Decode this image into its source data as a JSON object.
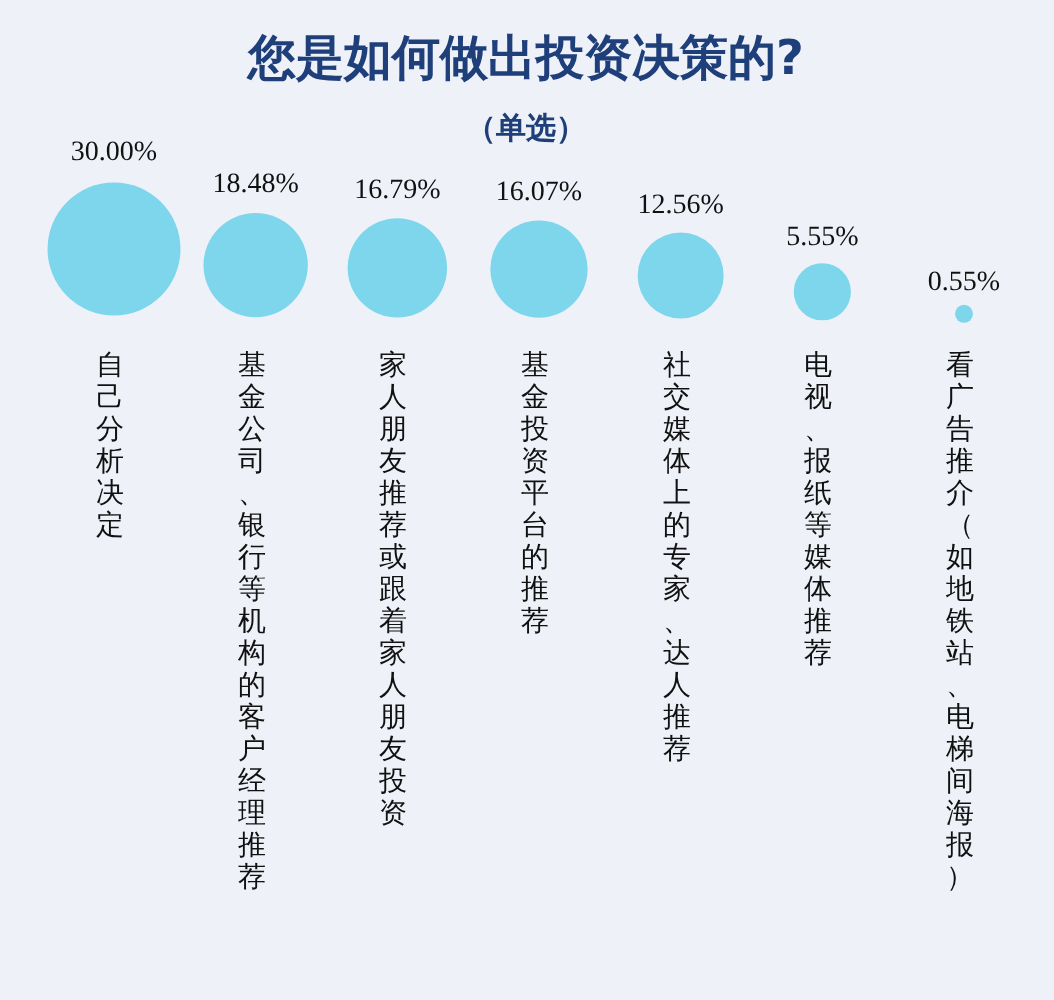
{
  "chart_data": {
    "type": "other",
    "title": "您是如何做出投资决策的?",
    "subtitle": "（单选）",
    "categories": [
      "自己分析决定",
      "基金公司、银行等机构的客户经理推荐",
      "家人朋友推荐或跟着家人朋友投资",
      "基金投资平台的推荐",
      "社交媒体上的专家、达人推荐",
      "电视、报纸等媒体推荐",
      "看广告推介（如地铁站、电梯间海报）"
    ],
    "values": [
      30.0,
      18.48,
      16.79,
      16.07,
      12.56,
      5.55,
      0.55
    ],
    "value_labels": [
      "30.00%",
      "18.48%",
      "16.79%",
      "16.07%",
      "12.56%",
      "5.55%",
      "0.55%"
    ],
    "color": "#7dd6ec"
  }
}
